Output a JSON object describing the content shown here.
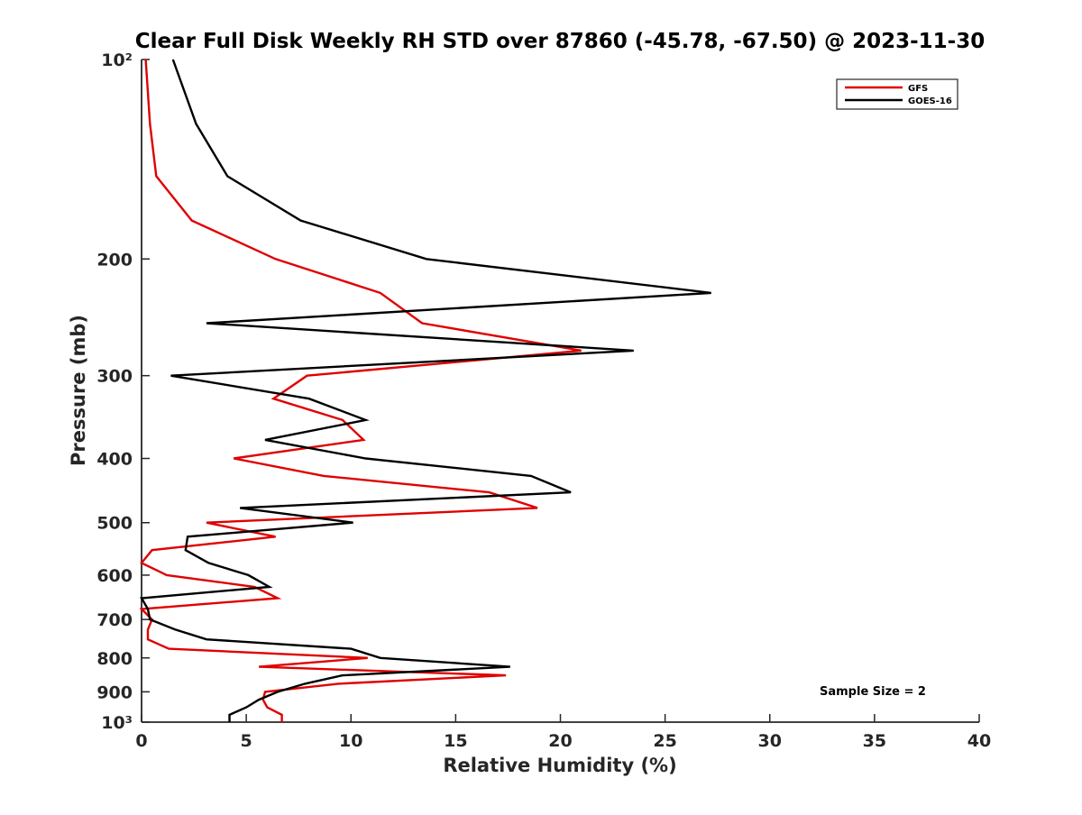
{
  "chart_data": {
    "type": "line",
    "title": "Clear Full Disk Weekly RH STD over 87860 (-45.78, -67.50) @ 2023-11-30",
    "xlabel": "Relative Humidity (%)",
    "ylabel": "Pressure (mb)",
    "xlim": [
      0,
      40
    ],
    "ylim": [
      100,
      1000
    ],
    "y_scale": "log",
    "y_reversed": true,
    "x_ticks": [
      0,
      5,
      10,
      15,
      20,
      25,
      30,
      35,
      40
    ],
    "x_tick_labels": [
      "0",
      "5",
      "10",
      "15",
      "20",
      "25",
      "30",
      "35",
      "40"
    ],
    "y_ticks": [
      100,
      200,
      300,
      400,
      500,
      600,
      700,
      800,
      900,
      1000
    ],
    "y_tick_labels": [
      "10²",
      "200",
      "300",
      "400",
      "500",
      "600",
      "700",
      "800",
      "900",
      "10³"
    ],
    "grid": false,
    "legend_position": "top-right",
    "annotation": "Sample Size = 2",
    "series": [
      {
        "name": "GFS",
        "color": "#e00000",
        "points": [
          [
            0.2,
            100
          ],
          [
            0.4,
            125
          ],
          [
            0.7,
            150
          ],
          [
            2.4,
            175
          ],
          [
            6.4,
            200
          ],
          [
            11.4,
            225
          ],
          [
            13.4,
            250
          ],
          [
            21.0,
            275
          ],
          [
            7.9,
            300
          ],
          [
            6.3,
            325
          ],
          [
            9.6,
            350
          ],
          [
            10.6,
            375
          ],
          [
            4.4,
            400
          ],
          [
            8.7,
            425
          ],
          [
            16.6,
            450
          ],
          [
            18.9,
            475
          ],
          [
            3.1,
            500
          ],
          [
            6.4,
            525
          ],
          [
            0.5,
            550
          ],
          [
            0.0,
            575
          ],
          [
            1.2,
            600
          ],
          [
            5.4,
            625
          ],
          [
            6.5,
            650
          ],
          [
            0.0,
            675
          ],
          [
            0.5,
            700
          ],
          [
            0.3,
            725
          ],
          [
            0.3,
            750
          ],
          [
            1.3,
            775
          ],
          [
            10.8,
            800
          ],
          [
            5.6,
            825
          ],
          [
            17.4,
            850
          ],
          [
            9.4,
            875
          ],
          [
            5.9,
            900
          ],
          [
            5.8,
            925
          ],
          [
            6.0,
            950
          ],
          [
            6.7,
            975
          ],
          [
            6.7,
            1000
          ]
        ]
      },
      {
        "name": "GOES-16",
        "color": "#000000",
        "points": [
          [
            1.5,
            100
          ],
          [
            2.6,
            125
          ],
          [
            4.1,
            150
          ],
          [
            7.6,
            175
          ],
          [
            13.6,
            200
          ],
          [
            27.2,
            225
          ],
          [
            3.1,
            250
          ],
          [
            23.5,
            275
          ],
          [
            1.4,
            300
          ],
          [
            8.0,
            325
          ],
          [
            10.7,
            350
          ],
          [
            5.9,
            375
          ],
          [
            10.7,
            400
          ],
          [
            18.6,
            425
          ],
          [
            20.5,
            450
          ],
          [
            4.7,
            475
          ],
          [
            10.1,
            500
          ],
          [
            2.2,
            525
          ],
          [
            2.1,
            550
          ],
          [
            3.2,
            575
          ],
          [
            5.1,
            600
          ],
          [
            6.1,
            625
          ],
          [
            0.0,
            650
          ],
          [
            0.3,
            675
          ],
          [
            0.4,
            700
          ],
          [
            1.6,
            725
          ],
          [
            3.1,
            750
          ],
          [
            10.0,
            775
          ],
          [
            11.4,
            800
          ],
          [
            17.6,
            825
          ],
          [
            9.6,
            850
          ],
          [
            7.8,
            875
          ],
          [
            6.5,
            900
          ],
          [
            5.6,
            925
          ],
          [
            5.0,
            950
          ],
          [
            4.2,
            975
          ],
          [
            4.2,
            1000
          ]
        ]
      }
    ]
  }
}
